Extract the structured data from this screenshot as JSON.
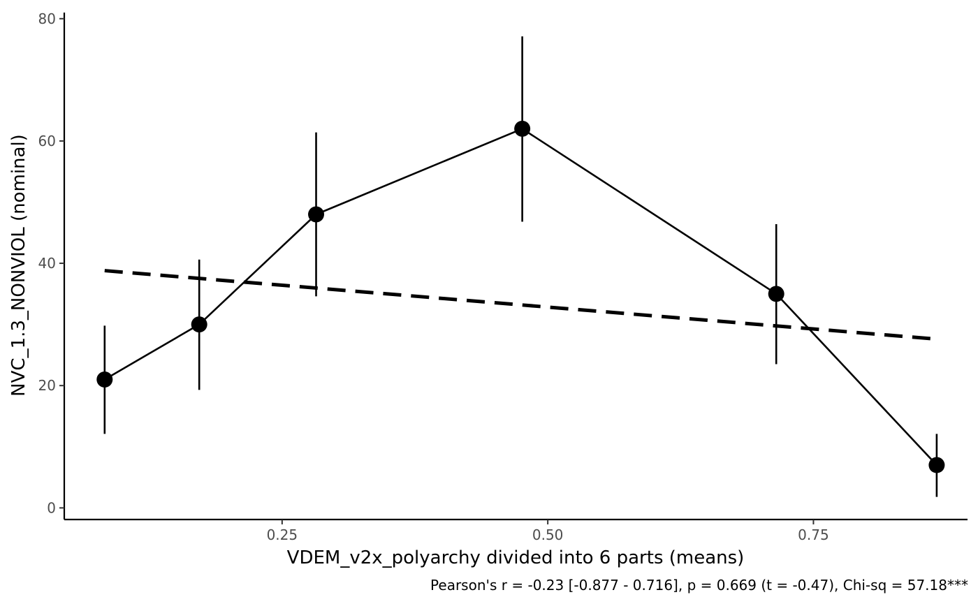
{
  "chart_data": {
    "type": "line",
    "xlabel": "VDEM_v2x_polyarchy divided into 6 parts (means)",
    "ylabel": "NVC_1.3_NONVIOL (nominal)",
    "caption": "Pearson's r = -0.23 [-0.877 - 0.716], p = 0.669 (t = -0.47), Chi-sq = 57.18***",
    "xlim": [
      0.045,
      0.895
    ],
    "ylim": [
      -1.9,
      81.0
    ],
    "x_ticks": [
      0.25,
      0.5,
      0.75
    ],
    "x_tick_labels": [
      "0.25",
      "0.50",
      "0.75"
    ],
    "y_ticks": [
      0,
      20,
      40,
      60,
      80
    ],
    "y_tick_labels": [
      "0",
      "20",
      "40",
      "60",
      "80"
    ],
    "grid": false,
    "series": [
      {
        "x": [
          0.083,
          0.172,
          0.282,
          0.476,
          0.715,
          0.866
        ],
        "y": [
          21,
          30,
          48,
          62,
          35,
          7
        ],
        "err_low": [
          12.1,
          19.3,
          34.6,
          46.8,
          23.5,
          1.8
        ],
        "err_high": [
          29.8,
          40.6,
          61.4,
          77.1,
          46.4,
          12.1
        ]
      }
    ],
    "trend": {
      "style": "dashed",
      "x": [
        0.083,
        0.866
      ],
      "y": [
        38.8,
        27.6
      ]
    },
    "colors": {
      "points": "#000000",
      "line": "#000000",
      "trend": "#000000"
    }
  }
}
